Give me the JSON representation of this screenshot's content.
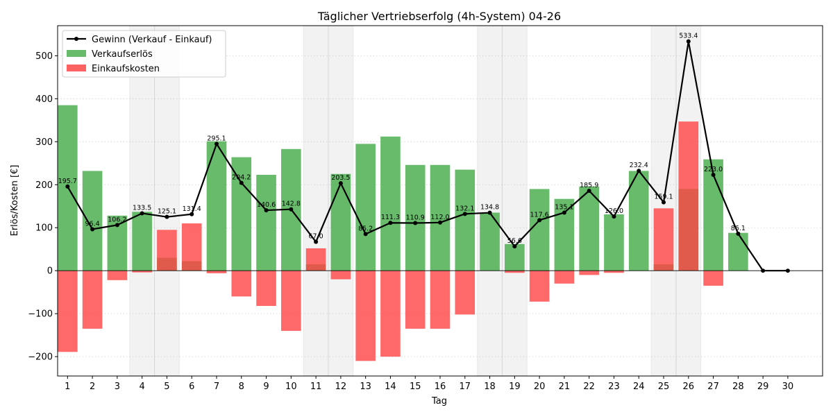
{
  "chart_data": {
    "type": "bar",
    "title": "Täglicher Vertriebserfolg (4h-System) 04-26",
    "xlabel": "Tag",
    "ylabel": "Erlös/Kosten [€]",
    "ylim": [
      -245,
      570
    ],
    "yticks": [
      -200,
      -100,
      0,
      100,
      200,
      300,
      400,
      500
    ],
    "grid": "horizontal dotted",
    "legend_position": "top-left",
    "categories": [
      "1",
      "2",
      "3",
      "4",
      "5",
      "6",
      "7",
      "8",
      "9",
      "10",
      "11",
      "12",
      "13",
      "14",
      "15",
      "16",
      "17",
      "18",
      "19",
      "20",
      "21",
      "22",
      "23",
      "24",
      "25",
      "26",
      "27",
      "28",
      "29",
      "30"
    ],
    "shaded_days": [
      "4",
      "5",
      "11",
      "12",
      "18",
      "19",
      "25",
      "26"
    ],
    "series": [
      {
        "name": "Gewinn (Verkauf - Einkauf)",
        "kind": "line",
        "color": "#000000",
        "values": [
          195.7,
          96.4,
          106.2,
          133.5,
          125.1,
          131.4,
          295.1,
          204.2,
          140.6,
          142.8,
          67.0,
          203.5,
          85.2,
          111.3,
          110.9,
          112.0,
          132.1,
          134.8,
          56.6,
          117.6,
          135.1,
          185.9,
          126.0,
          232.4,
          159.1,
          533.4,
          223.0,
          86.1,
          0,
          0
        ],
        "labels": [
          "195.7",
          "96.4",
          "106.2",
          "133.5",
          "125.1",
          "131.4",
          "295.1",
          "204.2",
          "140.6",
          "142.8",
          "67.0",
          "203.5",
          "85.2",
          "111.3",
          "110.9",
          "112.0",
          "132.1",
          "134.8",
          "56.6",
          "117.6",
          "135.1",
          "185.9",
          "126.0",
          "232.4",
          "159.1",
          "533.4",
          "223.0",
          "86.1",
          "",
          ""
        ]
      },
      {
        "name": "Verkaufserlös",
        "kind": "bar",
        "color": "#4caf50",
        "values": [
          385,
          232,
          128,
          137,
          30,
          22,
          301,
          264,
          223,
          283,
          15,
          225,
          295,
          312,
          246,
          246,
          235,
          135,
          62,
          190,
          167,
          196,
          131,
          232,
          15,
          190,
          259,
          88,
          0,
          0
        ]
      },
      {
        "name": "Einkaufskosten",
        "kind": "bar",
        "color": "#ff4444",
        "values": [
          -189,
          -135,
          -22,
          -4,
          95,
          110,
          -6,
          -60,
          -82,
          -140,
          52,
          -20,
          -210,
          -200,
          -135,
          -135,
          -102,
          0,
          -5,
          -72,
          -30,
          -10,
          -5,
          0,
          145,
          347,
          -35,
          0,
          0,
          0
        ]
      }
    ]
  }
}
